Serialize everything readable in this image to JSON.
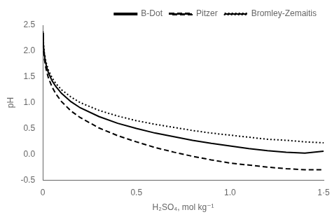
{
  "chart_data": {
    "type": "line",
    "xlabel": "H₂SO₄, mol kg⁻¹",
    "ylabel": "pH",
    "x": [
      0.001,
      0.003,
      0.005,
      0.008,
      0.01,
      0.015,
      0.02,
      0.03,
      0.05,
      0.07,
      0.1,
      0.15,
      0.2,
      0.3,
      0.4,
      0.5,
      0.6,
      0.7,
      0.8,
      0.9,
      1.0,
      1.1,
      1.2,
      1.3,
      1.4,
      1.5
    ],
    "series": [
      {
        "name": "B-Dot",
        "color": "#000000",
        "line_style": "solid",
        "values": [
          2.35,
          2.15,
          2.05,
          1.93,
          1.88,
          1.78,
          1.7,
          1.58,
          1.42,
          1.31,
          1.18,
          1.02,
          0.9,
          0.73,
          0.6,
          0.5,
          0.41,
          0.34,
          0.27,
          0.21,
          0.16,
          0.11,
          0.07,
          0.04,
          0.02,
          0.06
        ]
      },
      {
        "name": "Pitzer",
        "color": "#000000",
        "line_style": "dashed",
        "values": [
          2.3,
          2.08,
          1.98,
          1.86,
          1.81,
          1.7,
          1.61,
          1.48,
          1.3,
          1.17,
          1.02,
          0.84,
          0.71,
          0.51,
          0.36,
          0.24,
          0.13,
          0.04,
          -0.04,
          -0.11,
          -0.17,
          -0.21,
          -0.25,
          -0.28,
          -0.3,
          -0.3
        ]
      },
      {
        "name": "Bromley-Zemaitis",
        "color": "#000000",
        "line_style": "dotted",
        "values": [
          2.38,
          2.2,
          2.1,
          1.98,
          1.93,
          1.83,
          1.75,
          1.63,
          1.48,
          1.37,
          1.25,
          1.11,
          1.0,
          0.85,
          0.74,
          0.65,
          0.58,
          0.52,
          0.46,
          0.41,
          0.37,
          0.33,
          0.29,
          0.27,
          0.24,
          0.22
        ]
      }
    ],
    "xlim": [
      0,
      1.5
    ],
    "xticks": [
      0,
      0.5,
      {
        "value": 1.0,
        "label": "1.0"
      },
      {
        "value": 1.5,
        "label": "1·5"
      }
    ],
    "ylim": [
      -0.5,
      2.5
    ],
    "yticks": [
      -0.5,
      {
        "value": 0.0,
        "label": "0.0"
      },
      0.5,
      {
        "value": 1.0,
        "label": "1.0"
      },
      1.5,
      {
        "value": 2.0,
        "label": "2.0"
      },
      2.5
    ],
    "grid": false,
    "legend": "upper right"
  }
}
